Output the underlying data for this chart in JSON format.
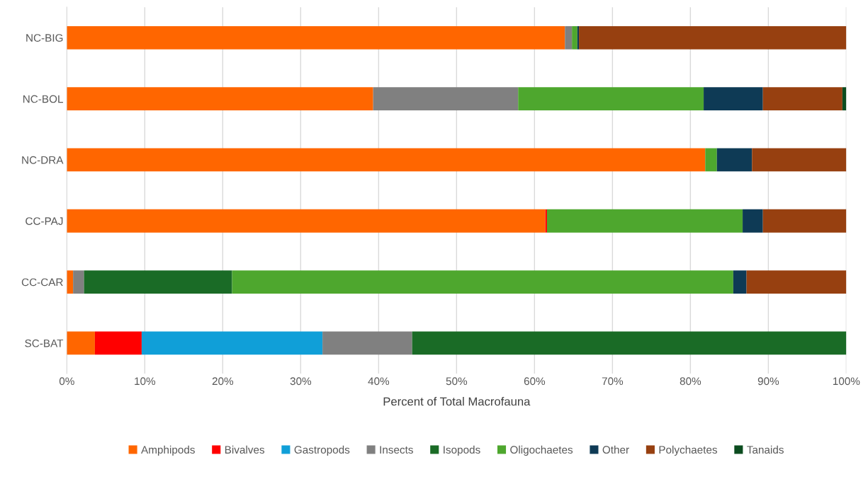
{
  "chart_data": {
    "type": "bar",
    "orientation": "horizontal",
    "stacked": true,
    "xlabel": "Percent of Total Macrofauna",
    "categories": [
      "NC-BIG",
      "NC-BOL",
      "NC-DRA",
      "CC-PAJ",
      "CC-CAR",
      "SC-BAT"
    ],
    "series": [
      {
        "name": "Amphipods",
        "color": "#ff6600",
        "values": [
          63.9,
          39.3,
          81.9,
          61.4,
          0.8,
          3.6
        ]
      },
      {
        "name": "Bivalves",
        "color": "#ff0000",
        "values": [
          null,
          null,
          null,
          0.2,
          null,
          6.0
        ]
      },
      {
        "name": "Gastropods",
        "color": "#109fd8",
        "values": [
          null,
          null,
          null,
          null,
          null,
          23.2
        ]
      },
      {
        "name": "Insects",
        "color": "#808080",
        "values": [
          0.9,
          18.6,
          null,
          null,
          1.4,
          11.5
        ]
      },
      {
        "name": "Isopods",
        "color": "#1a6b26",
        "values": [
          null,
          null,
          null,
          null,
          19.0,
          55.7
        ]
      },
      {
        "name": "Oligochaetes",
        "color": "#4ea72e",
        "values": [
          0.7,
          23.8,
          1.5,
          25.1,
          64.3,
          null
        ]
      },
      {
        "name": "Other",
        "color": "#0e3a55",
        "values": [
          0.2,
          7.6,
          4.5,
          2.6,
          1.7,
          null
        ]
      },
      {
        "name": "Polychaetes",
        "color": "#974010",
        "values": [
          34.3,
          10.2,
          12.1,
          10.7,
          12.8,
          null
        ]
      },
      {
        "name": "Tanaids",
        "color": "#0b4c1f",
        "values": [
          null,
          0.5,
          null,
          null,
          null,
          null
        ]
      }
    ],
    "xlim": [
      0,
      100
    ],
    "xticks": [
      {
        "value": 0,
        "label": "0%"
      },
      {
        "value": 10,
        "label": "10%"
      },
      {
        "value": 20,
        "label": "20%"
      },
      {
        "value": 30,
        "label": "30%"
      },
      {
        "value": 40,
        "label": "40%"
      },
      {
        "value": 50,
        "label": "50%"
      },
      {
        "value": 60,
        "label": "60%"
      },
      {
        "value": 70,
        "label": "70%"
      },
      {
        "value": 80,
        "label": "80%"
      },
      {
        "value": 90,
        "label": "90%"
      },
      {
        "value": 100,
        "label": "100%"
      }
    ],
    "grid": "x",
    "legend": "bottom"
  }
}
